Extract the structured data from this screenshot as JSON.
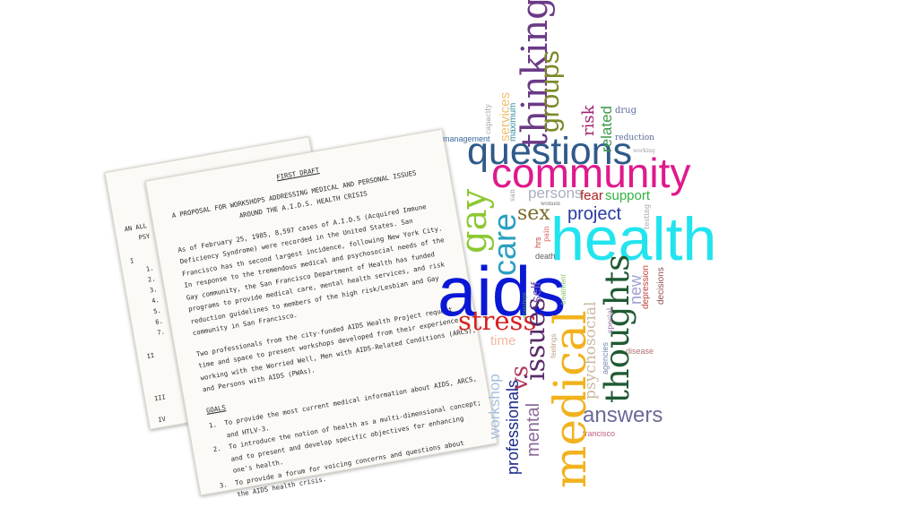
{
  "back_doc": {
    "fragments": [
      "AN ALL",
      "PSY",
      "I",
      "1.",
      "2.",
      "3.",
      "4.",
      "5.",
      "6.",
      "7.",
      "II",
      "III",
      "IV"
    ]
  },
  "front_doc": {
    "header": "FIRST DRAFT",
    "title_line1": "A PROPOSAL FOR WORKSHOPS ADDRESSING MEDICAL AND PERSONAL ISSUES",
    "title_line2": "AROUND THE A.I.D.S. HEALTH CRISIS",
    "para1": [
      "As of February 25, 1985, 8,597 cases of A.I.D.S (Acquired Immune",
      "Deficiency Syndrome) were recorded in the United States.  San",
      "Francisco has th second largest incidence, following New York City.",
      "In response to the tremendous medical and psychosocial needs of the",
      "Gay community, the San Francisco Department of Health has funded",
      "programs to provide medical care, mental health services, and risk",
      "reduction guidelines to members of the high risk/Lesbian and Gay",
      "community in San Francisco."
    ],
    "para2": [
      "Two professionals from the city-funded AIDS Health Project request",
      "time and space to present workshops developed from their experience",
      "working with the Worried Well, Men with AIDS-Related Conditions (ARCS),",
      "and Persons with AIDS (PWAs)."
    ],
    "goals_heading": "GOALS",
    "goals": [
      "1.  To provide the most current medical information about AIDS, ARCS,",
      "    and HTLV-3.",
      "2.  To introduce the notion of health as a multi-dimensional concept;",
      "    and to present and develop specific objectives for enhancing",
      "    one's health.",
      "3.  To provide a forum for voicing concerns and questions about",
      "    the AIDS health crisis."
    ]
  },
  "word_cloud": {
    "words": [
      {
        "text": "aids",
        "color": "#0a18d6"
      },
      {
        "text": "health",
        "color": "#22e4ef"
      },
      {
        "text": "community",
        "color": "#e0198c"
      },
      {
        "text": "questions",
        "color": "#2f5a8a"
      },
      {
        "text": "medical",
        "color": "#f2b21d"
      },
      {
        "text": "thoughts",
        "color": "#1f5a32"
      },
      {
        "text": "thinking",
        "color": "#6a3a86"
      },
      {
        "text": "groups",
        "color": "#7c8a2a"
      },
      {
        "text": "gay",
        "color": "#8cc832"
      },
      {
        "text": "care",
        "color": "#2aa0c0"
      },
      {
        "text": "issues",
        "color": "#5a2a6a"
      },
      {
        "text": "stress",
        "color": "#d62222"
      },
      {
        "text": "answers",
        "color": "#6a6a9a"
      },
      {
        "text": "project",
        "color": "#2a3aa0"
      },
      {
        "text": "sex",
        "color": "#7a6a2a"
      },
      {
        "text": "persons",
        "color": "#a8b0c0"
      },
      {
        "text": "fear",
        "color": "#b02020"
      },
      {
        "text": "support",
        "color": "#30b040"
      },
      {
        "text": "risk",
        "color": "#a02070"
      },
      {
        "text": "related",
        "color": "#3a9a4a"
      },
      {
        "text": "vs",
        "color": "#b03a5a"
      },
      {
        "text": "mental",
        "color": "#8a6a9a"
      },
      {
        "text": "professionals",
        "color": "#1a2a8a"
      },
      {
        "text": "workshop",
        "color": "#a8c0dc"
      },
      {
        "text": "psychosocial",
        "color": "#c8b8a0"
      },
      {
        "text": "new",
        "color": "#a0a0d0"
      },
      {
        "text": "time",
        "color": "#f0b8a0"
      },
      {
        "text": "services",
        "color": "#f0c070"
      },
      {
        "text": "management",
        "color": "#3a6a9a"
      },
      {
        "text": "maximum",
        "color": "#2a8aa0"
      },
      {
        "text": "capacity",
        "color": "#a0a0a0"
      },
      {
        "text": "drug",
        "color": "#5a6a9a"
      },
      {
        "text": "reduction",
        "color": "#5a6a9a"
      },
      {
        "text": "working",
        "color": "#a0a0a0"
      },
      {
        "text": "testing",
        "color": "#a0a0a0"
      },
      {
        "text": "depression",
        "color": "#c04040"
      },
      {
        "text": "decisions",
        "color": "#905050"
      },
      {
        "text": "disease",
        "color": "#b07070"
      },
      {
        "text": "francisco",
        "color": "#c06080"
      },
      {
        "text": "self",
        "color": "#7a5ab0"
      },
      {
        "text": "hrs",
        "color": "#606060"
      },
      {
        "text": "death",
        "color": "#c04040"
      },
      {
        "text": "pain",
        "color": "#e06060"
      },
      {
        "text": "women",
        "color": "#6a6a6a"
      },
      {
        "text": "san",
        "color": "#a0a0a0"
      },
      {
        "text": "treatment",
        "color": "#8ac060"
      },
      {
        "text": "feelings",
        "color": "#c0a080"
      },
      {
        "text": "agencies",
        "color": "#7a8ab0"
      },
      {
        "text": "special",
        "color": "#9a6aa0"
      },
      {
        "text": "workshops",
        "color": "#5a9a5a"
      },
      {
        "text": "aid",
        "color": "#6a9ad0"
      }
    ]
  }
}
